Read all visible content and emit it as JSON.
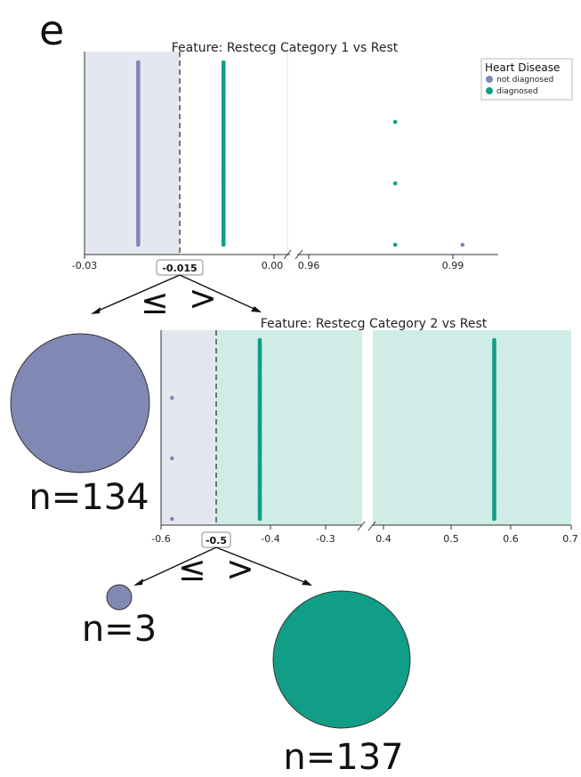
{
  "panel_label": "e",
  "colors": {
    "not_diagnosed": "#8088b3",
    "diagnosed": "#119e86",
    "left_region": "#e5e7f0",
    "right_region": "#cfece6",
    "threshold_line": "#555555",
    "arrow": "#111111"
  },
  "legend": {
    "title": "Heart Disease",
    "entries": [
      "not diagnosed",
      "diagnosed"
    ]
  },
  "nodes": {
    "root_split_symbols": [
      "≤",
      ">"
    ],
    "second_split_symbols": [
      "≤",
      ">"
    ],
    "leaf1_label": "n=134",
    "leaf2_label": "n=3",
    "leaf3_label": "n=137",
    "leaf_counts": [
      134,
      3,
      137
    ]
  },
  "chart_data": [
    {
      "type": "scatter",
      "title": "Feature: Restecg Category 1 vs Rest",
      "broken_axis": true,
      "xlim_left": [
        -0.03,
        0.0
      ],
      "xlim_right": [
        0.96,
        1.0
      ],
      "xticks_left": [
        "-0.03",
        "-0.015",
        "0.00"
      ],
      "xticks_right": [
        "0.96",
        "0.99"
      ],
      "threshold": -0.015,
      "threshold_label": "-0.015",
      "series": [
        {
          "name": "not diagnosed",
          "points": [
            {
              "x": -0.0215,
              "count": 134
            },
            {
              "x": 0.992,
              "count": 1
            }
          ]
        },
        {
          "name": "diagnosed",
          "points": [
            {
              "x": -0.008,
              "count": 137
            },
            {
              "x": 0.978,
              "count": 3
            }
          ]
        }
      ]
    },
    {
      "type": "scatter",
      "title": "Feature: Restecg Category 2 vs Rest",
      "broken_axis": true,
      "xlim_left": [
        -0.6,
        -0.25
      ],
      "xlim_right": [
        0.4,
        0.7
      ],
      "xticks_left": [
        "-0.6",
        "-0.5",
        "-0.4",
        "-0.3"
      ],
      "xticks_right": [
        "0.4",
        "0.5",
        "0.6",
        "0.7"
      ],
      "threshold": -0.5,
      "threshold_label": "-0.5",
      "series": [
        {
          "name": "not diagnosed",
          "points": [
            {
              "x": -0.58,
              "count": 3
            }
          ]
        },
        {
          "name": "diagnosed",
          "points": [
            {
              "x": -0.42,
              "count": 137
            },
            {
              "x": 0.577,
              "count": 137
            }
          ]
        }
      ]
    }
  ]
}
